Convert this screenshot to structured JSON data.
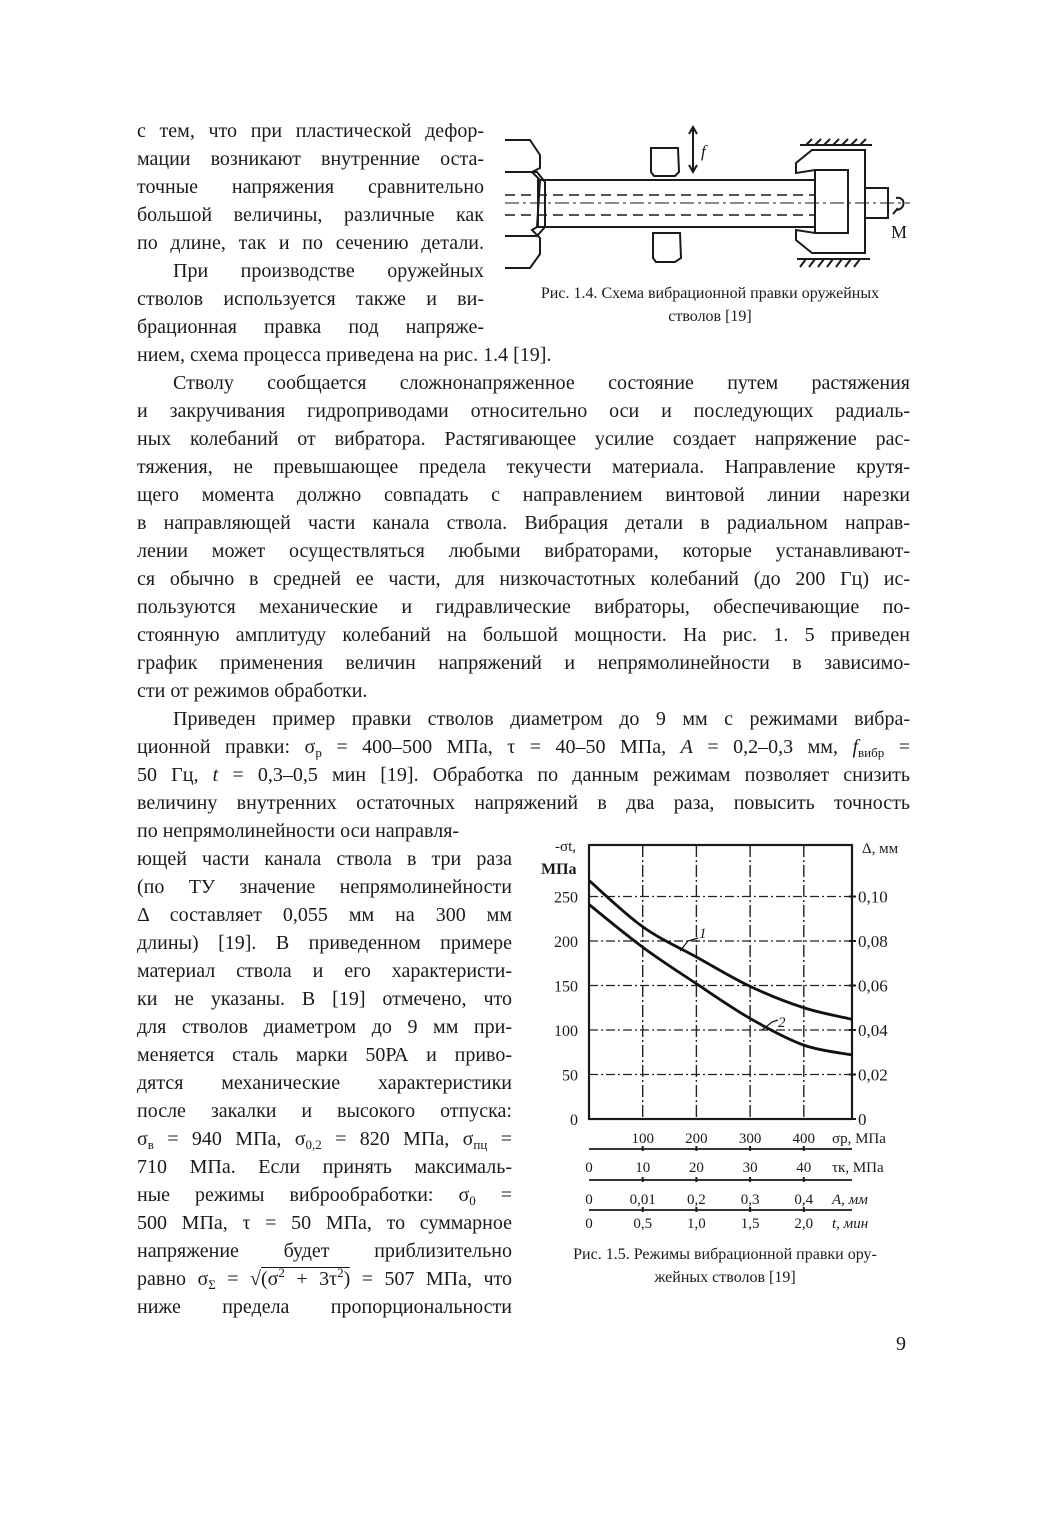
{
  "blocks": {
    "top_left": [
      {
        "t": "с тем, что при пластической дефор-"
      },
      {
        "t": "мации возникают внутренние оста-"
      },
      {
        "t": "точные напряжения сравнительно"
      },
      {
        "t": "большой величины, различные как"
      },
      {
        "t": "по длине, так и по сечению детали."
      },
      {
        "t": "При производстве оружейных",
        "ind": true
      },
      {
        "t": "стволов используется также и ви-"
      },
      {
        "t": "брационная правка под напряже-"
      }
    ],
    "full_1": [
      {
        "t": "нием, схема процесса приведена на рис. 1.4 [19].",
        "last": true
      },
      {
        "t": "Стволу сообщается сложнонапряженное состояние путем растяжения",
        "ind": true
      },
      {
        "t": "и закручивания гидроприводами относительно оси и последующих радиаль-"
      },
      {
        "t": "ных колебаний от вибратора. Растягивающее усилие создает напряжение рас-"
      },
      {
        "t": "тяжения, не превышающее предела текучести материала. Направление крутя-"
      },
      {
        "t": "щего момента должно совпадать с направлением винтовой линии нарезки"
      },
      {
        "t": "в направляющей части канала ствола. Вибрация детали в радиальном направ-"
      },
      {
        "t": "лении может осуществляться любыми вибраторами, которые устанавливают-"
      },
      {
        "t": "ся обычно в средней ее части, для низкочастотных колебаний (до 200 Гц) ис-"
      },
      {
        "t": "пользуются механические и гидравлические вибраторы, обеспечивающие по-"
      },
      {
        "t": "стоянную амплитуду колебаний на большой мощности. На рис. 1. 5 приведен"
      },
      {
        "t": "график применения величин напряжений и непрямолинейности в зависимо-"
      },
      {
        "t": "сти от режимов обработки.",
        "last": true
      },
      {
        "t": "Приведен пример правки стволов диаметром до 9 мм с режимами вибра-",
        "ind": true
      },
      {
        "seg": [
          "ционной правки: σ",
          {
            "sub": "р"
          },
          " = 400–500 МПа, τ = 40–50 МПа, ",
          {
            "i": "А"
          },
          " = 0,2–0,3 мм, ",
          {
            "i": "f"
          },
          {
            "sub": "вибр"
          },
          " ="
        ]
      },
      {
        "seg": [
          "50 Гц, ",
          {
            "i": "t"
          },
          " = 0,3–0,5 мин [19]. Обработка по данным режимам позволяет снизить"
        ]
      },
      {
        "t": "величину внутренних остаточных напряжений в два раза, повысить точность"
      }
    ],
    "bottom_left": [
      {
        "t": "по непрямолинейности оси направля-",
        "last": true
      },
      {
        "t": "ющей части канала ствола в три раза"
      },
      {
        "t": "(по ТУ значение непрямолинейности"
      },
      {
        "t": "Δ составляет 0,055 мм на 300 мм"
      },
      {
        "t": "длины) [19]. В приведенном примере"
      },
      {
        "t": "материал ствола и его характеристи-"
      },
      {
        "t": "ки не указаны. В [19] отмечено, что"
      },
      {
        "t": "для стволов диаметром до 9 мм при-"
      },
      {
        "t": "меняется сталь марки 50РА и приво-"
      },
      {
        "t": "дятся механические характеристики"
      },
      {
        "t": "после закалки и высокого отпуска:"
      },
      {
        "seg": [
          "σ",
          {
            "sub": "в"
          },
          " = 940 МПа, σ",
          {
            "sub": "0,2"
          },
          " = 820 МПа, σ",
          {
            "sub": "пц"
          },
          " ="
        ]
      },
      {
        "t": "710 МПа. Если принять максималь-"
      },
      {
        "seg": [
          "ные режимы виброобработки: σ",
          {
            "sub": "0"
          },
          " ="
        ]
      },
      {
        "t": "500 МПа, τ = 50 МПа, то суммарное"
      },
      {
        "t": "напряжение будет приблизительно"
      },
      {
        "seg": [
          "равно σ",
          {
            "sub": "Σ"
          },
          " = √",
          {
            "sqrt": [
              "(σ",
              {
                "sup": "2"
              },
              " + 3τ",
              {
                "sup": "2"
              },
              ")"
            ]
          },
          " = 507 МПа, что"
        ]
      },
      {
        "t": "ниже предела пропорциональности"
      }
    ]
  },
  "figure_1_4": {
    "caption_1": "Рис. 1.4. Схема вибрационной правки оружейных",
    "caption_2": "стволов [19]",
    "label_f": "f",
    "label_M": "М"
  },
  "figure_1_5": {
    "caption_1": "Рис. 1.5. Режимы вибрационной правки ору-",
    "caption_2": "жейных стволов [19]"
  },
  "chart_data": {
    "type": "line",
    "title": "",
    "y_left_label": [
      "-σt,",
      "МПа"
    ],
    "y_right_label": "Δ, мм",
    "ylim": [
      0,
      300
    ],
    "xlim": [
      0,
      490
    ],
    "grid": true,
    "y_left_ticks": [
      {
        "v": 0,
        "l": "0"
      },
      {
        "v": 50,
        "l": "50"
      },
      {
        "v": 100,
        "l": "100"
      },
      {
        "v": 150,
        "l": "150"
      },
      {
        "v": 200,
        "l": "200"
      },
      {
        "v": 250,
        "l": "250"
      }
    ],
    "y_right_ticks": [
      {
        "v": 0,
        "l": "0"
      },
      {
        "v": 0.02,
        "l": "0,02"
      },
      {
        "v": 0.04,
        "l": "0,04"
      },
      {
        "v": 0.06,
        "l": "0,06"
      },
      {
        "v": 0.08,
        "l": "0,08"
      },
      {
        "v": 0.1,
        "l": "0,10"
      }
    ],
    "x_axes": [
      {
        "label": "σр, МПа",
        "ticks": [
          {
            "v": 100,
            "l": "100"
          },
          {
            "v": 200,
            "l": "200"
          },
          {
            "v": 300,
            "l": "300"
          },
          {
            "v": 400,
            "l": "400"
          }
        ]
      },
      {
        "label": "τк, МПа",
        "ticks": [
          {
            "v": 0,
            "l": "0"
          },
          {
            "v": 100,
            "l": "10"
          },
          {
            "v": 200,
            "l": "20"
          },
          {
            "v": 300,
            "l": "30"
          },
          {
            "v": 400,
            "l": "40"
          }
        ]
      },
      {
        "label": "А, мм",
        "ticks": [
          {
            "v": 0,
            "l": "0"
          },
          {
            "v": 100,
            "l": "0,01"
          },
          {
            "v": 200,
            "l": "0,2"
          },
          {
            "v": 300,
            "l": "0,3"
          },
          {
            "v": 400,
            "l": "0,4"
          }
        ]
      },
      {
        "label": "t, мин",
        "ticks": [
          {
            "v": 0,
            "l": "0"
          },
          {
            "v": 100,
            "l": "0,5"
          },
          {
            "v": 200,
            "l": "1,0"
          },
          {
            "v": 300,
            "l": "1,5"
          },
          {
            "v": 400,
            "l": "2,0"
          }
        ]
      }
    ],
    "x": [
      0,
      100,
      200,
      300,
      400,
      490
    ],
    "series": [
      {
        "name": "1",
        "values": [
          268,
          216,
          182,
          149,
          125,
          112
        ]
      },
      {
        "name": "2",
        "values": [
          241,
          193,
          152,
          113,
          83,
          72
        ]
      }
    ]
  },
  "page_number": "9"
}
